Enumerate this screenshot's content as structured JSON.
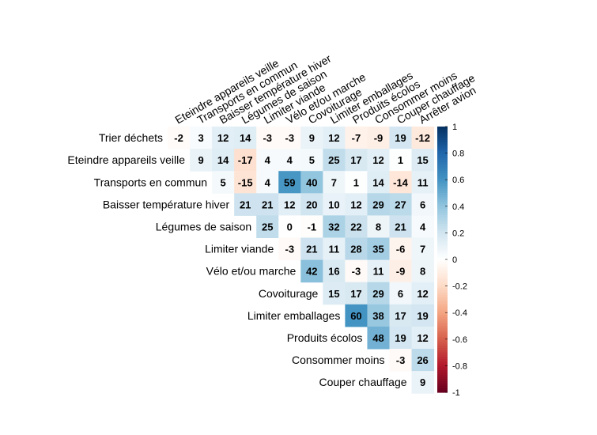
{
  "chart_data": {
    "type": "heatmap",
    "shape": "upper-triangular",
    "columns": [
      "Eteindre appareils veille",
      "Transports en commun",
      "Baisser température hiver",
      "Légumes de saison",
      "Limiter viande",
      "Vélo et/ou marche",
      "Covoiturage",
      "Limiter emballages",
      "Produits écolos",
      "Consommer moins",
      "Couper chauffage",
      "Arrêter avion"
    ],
    "rows": [
      "Trier déchets",
      "Eteindre appareils veille",
      "Transports en commun",
      "Baisser température hiver",
      "Légumes de saison",
      "Limiter viande",
      "Vélo et/ou marche",
      "Covoiturage",
      "Limiter emballages",
      "Produits écolos",
      "Consommer moins",
      "Couper chauffage"
    ],
    "values": [
      [
        -2,
        3,
        12,
        14,
        -3,
        -3,
        9,
        12,
        -7,
        -9,
        19,
        -12
      ],
      [
        9,
        14,
        -17,
        4,
        4,
        5,
        25,
        17,
        12,
        1,
        15
      ],
      [
        5,
        -15,
        4,
        59,
        40,
        7,
        1,
        14,
        -14,
        11
      ],
      [
        21,
        21,
        12,
        20,
        10,
        12,
        29,
        27,
        6
      ],
      [
        25,
        0,
        -1,
        32,
        22,
        8,
        21,
        4
      ],
      [
        -3,
        21,
        11,
        28,
        35,
        -6,
        7
      ],
      [
        42,
        16,
        -3,
        11,
        -9,
        8
      ],
      [
        15,
        17,
        29,
        6,
        12
      ],
      [
        60,
        38,
        17,
        19
      ],
      [
        48,
        19,
        12
      ],
      [
        -3,
        26
      ],
      [
        9
      ]
    ],
    "value_scale": "correlation x 100",
    "colorbar": {
      "range": [
        -1,
        1
      ],
      "ticks": [
        "1",
        "0.8",
        "0.6",
        "0.4",
        "0.2",
        "0",
        "-0.2",
        "-0.4",
        "-0.6",
        "-0.8",
        "-1"
      ],
      "low_color": "#67001F",
      "mid_color": "#FFFFFF",
      "high_color": "#053061"
    },
    "grid": false,
    "legend": "right colorbar"
  }
}
